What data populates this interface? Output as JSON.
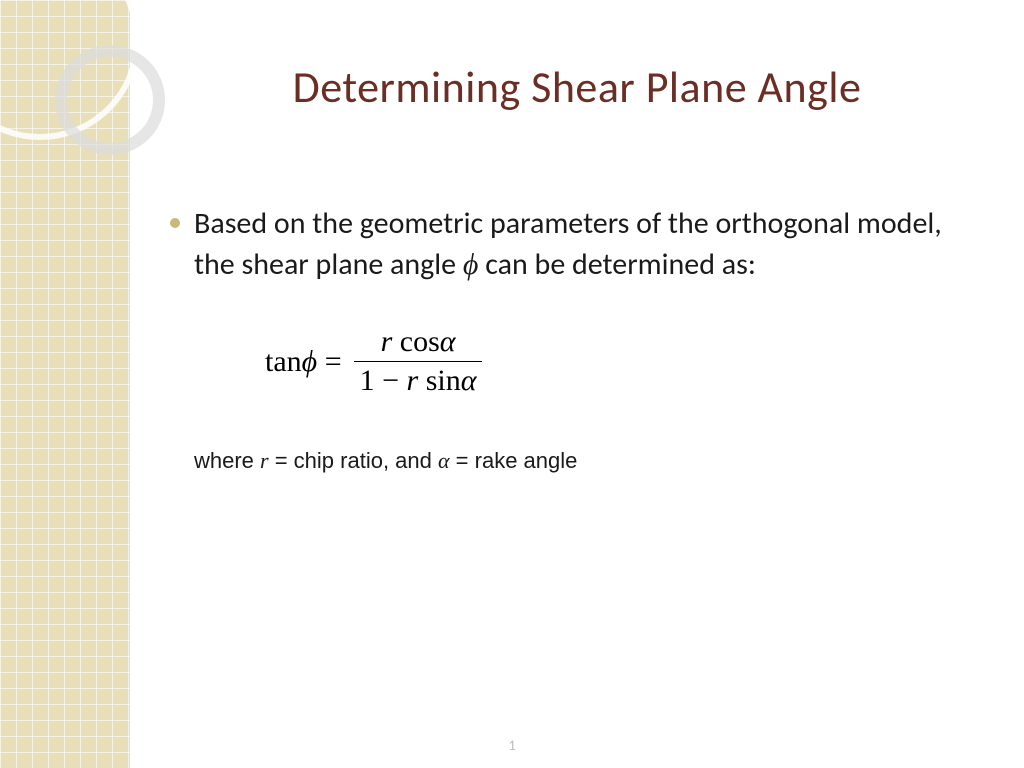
{
  "theme": {
    "sidebar_bg": "#e8dfb8",
    "sidebar_grid": "rgba(255,255,255,0.6)",
    "circle_outer": "rgba(255,255,255,0.85)",
    "circle_inner": "rgba(220,220,220,0.7)",
    "title_color": "#6b2e24",
    "bullet_color": "#c9b97a",
    "body_color": "#1a1a1a"
  },
  "slide": {
    "title": "Determining Shear Plane Angle",
    "bullet_text_pre": "Based on the geometric parameters of the orthogonal model, the shear plane angle ",
    "bullet_symbol": "ϕ",
    "bullet_text_post": " can be determined as:",
    "formula": {
      "lhs_func": "tan",
      "lhs_var": "ϕ",
      "eq": " = ",
      "num_var": "r",
      "num_func": " cos",
      "num_arg": "α",
      "den_pre": "1 − ",
      "den_var": "r",
      "den_func": " sin",
      "den_arg": "α"
    },
    "where": {
      "pre": "where ",
      "r": "r",
      "r_def": " = chip ratio, and ",
      "alpha": "α",
      "alpha_def": " = rake angle"
    },
    "page_number": "1"
  }
}
